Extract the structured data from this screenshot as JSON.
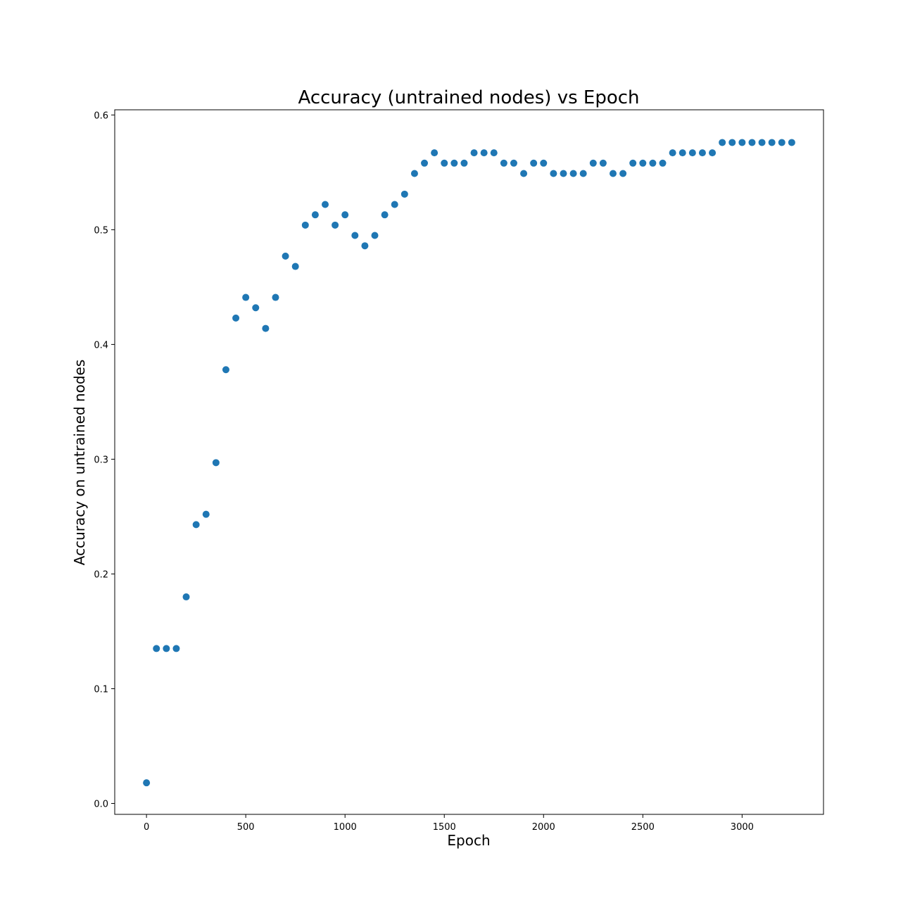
{
  "chart_data": {
    "type": "scatter",
    "title": "Accuracy (untrained nodes) vs Epoch",
    "xlabel": "Epoch",
    "ylabel": "Accuracy on untrained nodes",
    "xlim": [
      -160,
      3410
    ],
    "ylim": [
      -0.0095,
      0.6045
    ],
    "xticks": [
      0,
      500,
      1000,
      1500,
      2000,
      2500,
      3000
    ],
    "yticks": [
      0.0,
      0.1,
      0.2,
      0.3,
      0.4,
      0.5,
      0.6
    ],
    "xtick_labels": [
      "0",
      "500",
      "1000",
      "1500",
      "2000",
      "2500",
      "3000"
    ],
    "ytick_labels": [
      "0.0",
      "0.1",
      "0.2",
      "0.3",
      "0.4",
      "0.5",
      "0.6"
    ],
    "grid": false,
    "marker_color": "#1f77b4",
    "x": [
      0,
      50,
      100,
      150,
      200,
      250,
      300,
      350,
      400,
      450,
      500,
      550,
      600,
      650,
      700,
      750,
      800,
      850,
      900,
      950,
      1000,
      1050,
      1100,
      1150,
      1200,
      1250,
      1300,
      1350,
      1400,
      1450,
      1500,
      1550,
      1600,
      1650,
      1700,
      1750,
      1800,
      1850,
      1900,
      1950,
      2000,
      2050,
      2100,
      2150,
      2200,
      2250,
      2300,
      2350,
      2400,
      2450,
      2500,
      2550,
      2600,
      2650,
      2700,
      2750,
      2800,
      2850,
      2900,
      2950,
      3000,
      3050,
      3100,
      3150,
      3200,
      3250
    ],
    "y": [
      0.018,
      0.135,
      0.135,
      0.135,
      0.18,
      0.243,
      0.252,
      0.297,
      0.378,
      0.423,
      0.441,
      0.432,
      0.414,
      0.441,
      0.477,
      0.468,
      0.504,
      0.513,
      0.522,
      0.504,
      0.513,
      0.495,
      0.486,
      0.495,
      0.513,
      0.522,
      0.531,
      0.549,
      0.558,
      0.567,
      0.558,
      0.558,
      0.558,
      0.567,
      0.567,
      0.567,
      0.558,
      0.558,
      0.549,
      0.558,
      0.558,
      0.549,
      0.549,
      0.549,
      0.549,
      0.558,
      0.558,
      0.549,
      0.549,
      0.558,
      0.558,
      0.558,
      0.558,
      0.567,
      0.567,
      0.567,
      0.567,
      0.567,
      0.576,
      0.576,
      0.576,
      0.576,
      0.576,
      0.576,
      0.576,
      0.576
    ]
  }
}
